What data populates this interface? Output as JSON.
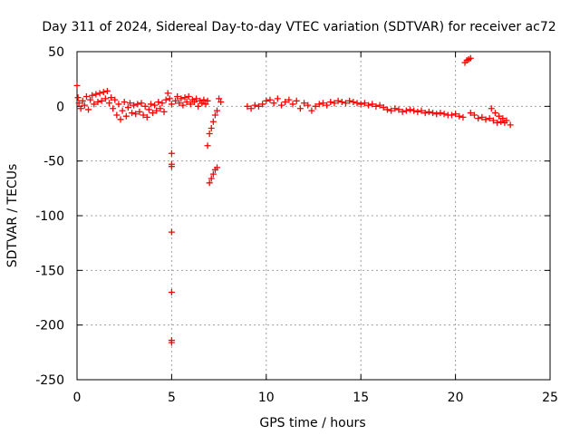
{
  "chart_data": {
    "type": "scatter",
    "title": "Day 311 of 2024, Sidereal Day-to-day VTEC variation (SDTVAR) for receiver ac72",
    "xlabel": "GPS time / hours",
    "ylabel": "SDTVAR / TECUs",
    "xlim": [
      0,
      25
    ],
    "ylim": [
      -250,
      50
    ],
    "xticks": [
      "0",
      "5",
      "10",
      "15",
      "20",
      "25"
    ],
    "yticks": [
      "50",
      "0",
      "-50",
      "-100",
      "-150",
      "-200",
      "-250"
    ],
    "grid": true,
    "marker": "+",
    "color": "#ff0000",
    "series": [
      {
        "name": "SDTVAR",
        "points": [
          [
            0.0,
            19
          ],
          [
            0.05,
            8
          ],
          [
            0.1,
            3
          ],
          [
            0.2,
            -2
          ],
          [
            0.3,
            5
          ],
          [
            0.4,
            1
          ],
          [
            0.5,
            9
          ],
          [
            0.6,
            -3
          ],
          [
            0.7,
            6
          ],
          [
            0.8,
            10
          ],
          [
            0.9,
            2
          ],
          [
            1.0,
            11
          ],
          [
            1.1,
            4
          ],
          [
            1.2,
            12
          ],
          [
            1.3,
            5
          ],
          [
            1.4,
            13
          ],
          [
            1.5,
            7
          ],
          [
            1.6,
            14
          ],
          [
            1.7,
            3
          ],
          [
            1.8,
            8
          ],
          [
            1.9,
            -2
          ],
          [
            2.0,
            6
          ],
          [
            2.1,
            -8
          ],
          [
            2.2,
            2
          ],
          [
            2.3,
            -12
          ],
          [
            2.4,
            -4
          ],
          [
            2.5,
            4
          ],
          [
            2.6,
            -9
          ],
          [
            2.7,
            -1
          ],
          [
            2.8,
            3
          ],
          [
            2.9,
            -6
          ],
          [
            3.0,
            1
          ],
          [
            3.1,
            -7
          ],
          [
            3.2,
            2
          ],
          [
            3.3,
            -5
          ],
          [
            3.4,
            3
          ],
          [
            3.5,
            -8
          ],
          [
            3.6,
            0
          ],
          [
            3.7,
            -10
          ],
          [
            3.8,
            -3
          ],
          [
            3.9,
            2
          ],
          [
            4.0,
            -6
          ],
          [
            4.1,
            1
          ],
          [
            4.2,
            -4
          ],
          [
            4.3,
            4
          ],
          [
            4.4,
            -2
          ],
          [
            4.5,
            3
          ],
          [
            4.6,
            -5
          ],
          [
            4.7,
            6
          ],
          [
            4.8,
            12
          ],
          [
            4.9,
            7
          ],
          [
            5.0,
            2
          ],
          [
            5.0,
            -43
          ],
          [
            5.0,
            -53
          ],
          [
            5.0,
            -55
          ],
          [
            5.0,
            -115
          ],
          [
            5.0,
            -170
          ],
          [
            5.0,
            -214
          ],
          [
            5.0,
            -216
          ],
          [
            5.2,
            5
          ],
          [
            5.3,
            9
          ],
          [
            5.4,
            3
          ],
          [
            5.5,
            7
          ],
          [
            5.6,
            1
          ],
          [
            5.7,
            8
          ],
          [
            5.8,
            4
          ],
          [
            5.9,
            9
          ],
          [
            6.0,
            2
          ],
          [
            6.1,
            6
          ],
          [
            6.2,
            4
          ],
          [
            6.3,
            7
          ],
          [
            6.4,
            0
          ],
          [
            6.5,
            5
          ],
          [
            6.6,
            3
          ],
          [
            6.7,
            6
          ],
          [
            6.8,
            2
          ],
          [
            6.9,
            5
          ],
          [
            6.9,
            -36
          ],
          [
            7.0,
            -25
          ],
          [
            7.1,
            -20
          ],
          [
            7.2,
            -14
          ],
          [
            7.3,
            -8
          ],
          [
            7.4,
            -4
          ],
          [
            7.0,
            -70
          ],
          [
            7.1,
            -66
          ],
          [
            7.2,
            -62
          ],
          [
            7.3,
            -58
          ],
          [
            7.4,
            -56
          ],
          [
            7.5,
            7
          ],
          [
            7.6,
            4
          ],
          [
            9.0,
            0
          ],
          [
            9.2,
            -2
          ],
          [
            9.4,
            1
          ],
          [
            9.6,
            0
          ],
          [
            9.8,
            2
          ],
          [
            10.0,
            5
          ],
          [
            10.2,
            6
          ],
          [
            10.4,
            3
          ],
          [
            10.6,
            7
          ],
          [
            10.8,
            1
          ],
          [
            11.0,
            4
          ],
          [
            11.2,
            6
          ],
          [
            11.4,
            2
          ],
          [
            11.6,
            5
          ],
          [
            11.8,
            -2
          ],
          [
            12.0,
            3
          ],
          [
            12.2,
            1
          ],
          [
            12.4,
            -4
          ],
          [
            12.6,
            0
          ],
          [
            12.8,
            2
          ],
          [
            13.0,
            3
          ],
          [
            13.2,
            1
          ],
          [
            13.4,
            4
          ],
          [
            13.6,
            3
          ],
          [
            13.8,
            5
          ],
          [
            14.0,
            4
          ],
          [
            14.2,
            3
          ],
          [
            14.4,
            5
          ],
          [
            14.6,
            4
          ],
          [
            14.8,
            3
          ],
          [
            15.0,
            2
          ],
          [
            15.2,
            3
          ],
          [
            15.4,
            1
          ],
          [
            15.6,
            2
          ],
          [
            15.8,
            0
          ],
          [
            16.0,
            1
          ],
          [
            16.2,
            -1
          ],
          [
            16.4,
            -3
          ],
          [
            16.6,
            -4
          ],
          [
            16.8,
            -2
          ],
          [
            17.0,
            -3
          ],
          [
            17.2,
            -5
          ],
          [
            17.4,
            -4
          ],
          [
            17.6,
            -3
          ],
          [
            17.8,
            -4
          ],
          [
            18.0,
            -5
          ],
          [
            18.2,
            -4
          ],
          [
            18.4,
            -6
          ],
          [
            18.6,
            -5
          ],
          [
            18.8,
            -6
          ],
          [
            19.0,
            -7
          ],
          [
            19.2,
            -6
          ],
          [
            19.4,
            -7
          ],
          [
            19.6,
            -8
          ],
          [
            19.8,
            -8
          ],
          [
            20.0,
            -7
          ],
          [
            20.2,
            -9
          ],
          [
            20.4,
            -10
          ],
          [
            20.5,
            40
          ],
          [
            20.6,
            42
          ],
          [
            20.7,
            43
          ],
          [
            20.8,
            44
          ],
          [
            20.8,
            -6
          ],
          [
            21.0,
            -8
          ],
          [
            21.2,
            -11
          ],
          [
            21.4,
            -10
          ],
          [
            21.6,
            -12
          ],
          [
            21.8,
            -11
          ],
          [
            22.0,
            -13
          ],
          [
            22.2,
            -15
          ],
          [
            22.4,
            -14
          ],
          [
            22.6,
            -15
          ],
          [
            21.9,
            -2
          ],
          [
            22.1,
            -6
          ],
          [
            22.3,
            -9
          ],
          [
            22.5,
            -11
          ],
          [
            22.7,
            -13
          ],
          [
            22.9,
            -17
          ]
        ]
      }
    ]
  }
}
